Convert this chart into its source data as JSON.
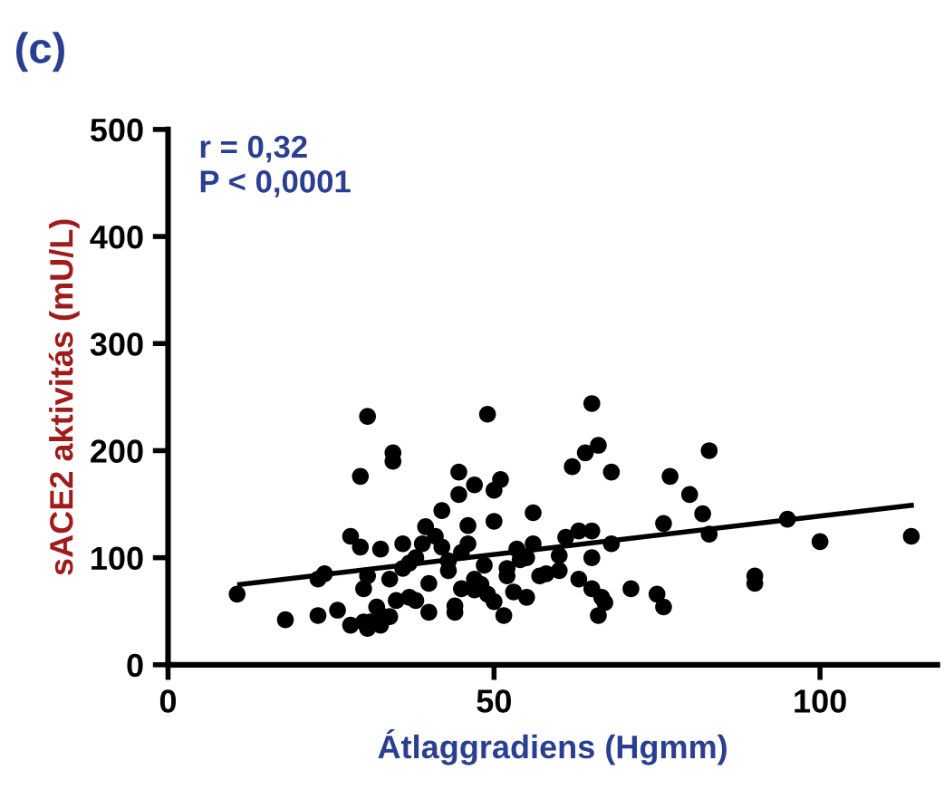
{
  "chart_data": {
    "type": "scatter",
    "title": "(c)",
    "xlabel": "Átlaggradiens (Hgmm)",
    "ylabel": "sACE2 aktivitás (mU/L)",
    "annotations": [
      "r = 0,32",
      "P < 0,0001"
    ],
    "xlim": [
      0,
      118
    ],
    "xticks": [
      0,
      50,
      100
    ],
    "ylim": [
      0,
      500
    ],
    "yticks": [
      0,
      100,
      200,
      300,
      400,
      500
    ],
    "grid": false,
    "legend": false,
    "marker": "circle",
    "series": [
      {
        "color": "#000000",
        "x": [
          10.6,
          18,
          23,
          26,
          28,
          30.6,
          32.6,
          30.6,
          29.5,
          34.5,
          34.5,
          29.5,
          32.6,
          36,
          24,
          23,
          30,
          30.6,
          34,
          32,
          37,
          49,
          65,
          66,
          64,
          62,
          68,
          44.6,
          47,
          50,
          51,
          44.6,
          42,
          39.5,
          50,
          56,
          39,
          46,
          53.5,
          56,
          61,
          63,
          65,
          68,
          76,
          43,
          48.5,
          52,
          54,
          60,
          65,
          40,
          45,
          49,
          53,
          57,
          63,
          65,
          40,
          44,
          50,
          55,
          66.5,
          71,
          66,
          67,
          51.5,
          75,
          76,
          83,
          77,
          80,
          82,
          83,
          95,
          100,
          114,
          90,
          90,
          36,
          38,
          41,
          43,
          45,
          47,
          35,
          37,
          42,
          46,
          48,
          31,
          33,
          38,
          44,
          47,
          52,
          58,
          55,
          60,
          28,
          30,
          34
        ],
        "values": [
          66,
          42,
          46,
          51,
          37,
          34,
          37,
          232,
          176,
          198,
          190,
          110,
          108,
          113,
          85,
          80,
          71,
          83,
          80,
          54,
          63,
          234,
          244,
          205,
          198,
          185,
          180,
          180,
          168,
          163,
          173,
          159,
          144,
          129,
          134,
          142,
          113,
          113,
          108,
          113,
          119,
          125,
          125,
          113,
          132,
          97,
          93,
          83,
          98,
          102,
          100,
          76,
          71,
          66,
          68,
          83,
          80,
          71,
          49,
          49,
          59,
          63,
          63,
          71,
          46,
          58,
          46,
          66,
          54,
          200,
          176,
          159,
          141,
          122,
          136,
          115,
          120,
          83,
          76,
          90,
          100,
          120,
          88,
          105,
          80,
          60,
          95,
          110,
          130,
          75,
          40,
          45,
          60,
          55,
          70,
          90,
          85,
          100,
          88,
          120,
          40,
          45
        ]
      },
      {
        "type": "line",
        "color": "#000000",
        "x": [
          11,
          114
        ],
        "values": [
          75,
          149
        ],
        "marker": "none"
      }
    ]
  }
}
